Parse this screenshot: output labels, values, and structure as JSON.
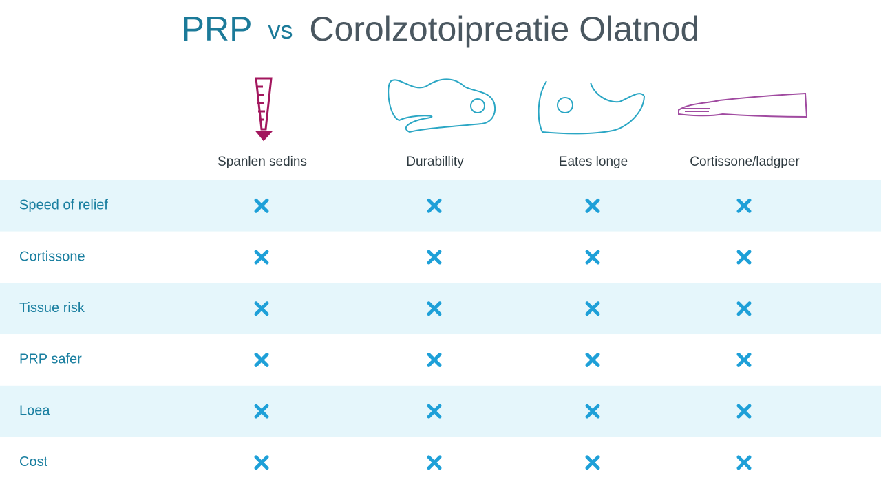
{
  "header": {
    "title_lead": "PRP",
    "title_vs": "vs",
    "title_rest": "Corolzotoipreatie Olatnod"
  },
  "table": {
    "columns": [
      "Spanlen sedins",
      "Durabillity",
      "Eates longe",
      "Cortissone/ladgper"
    ],
    "rows": [
      "Speed of relief",
      "Cortissone",
      "Tissue risk",
      "PRP safer",
      "Loea",
      "Cost"
    ]
  }
}
